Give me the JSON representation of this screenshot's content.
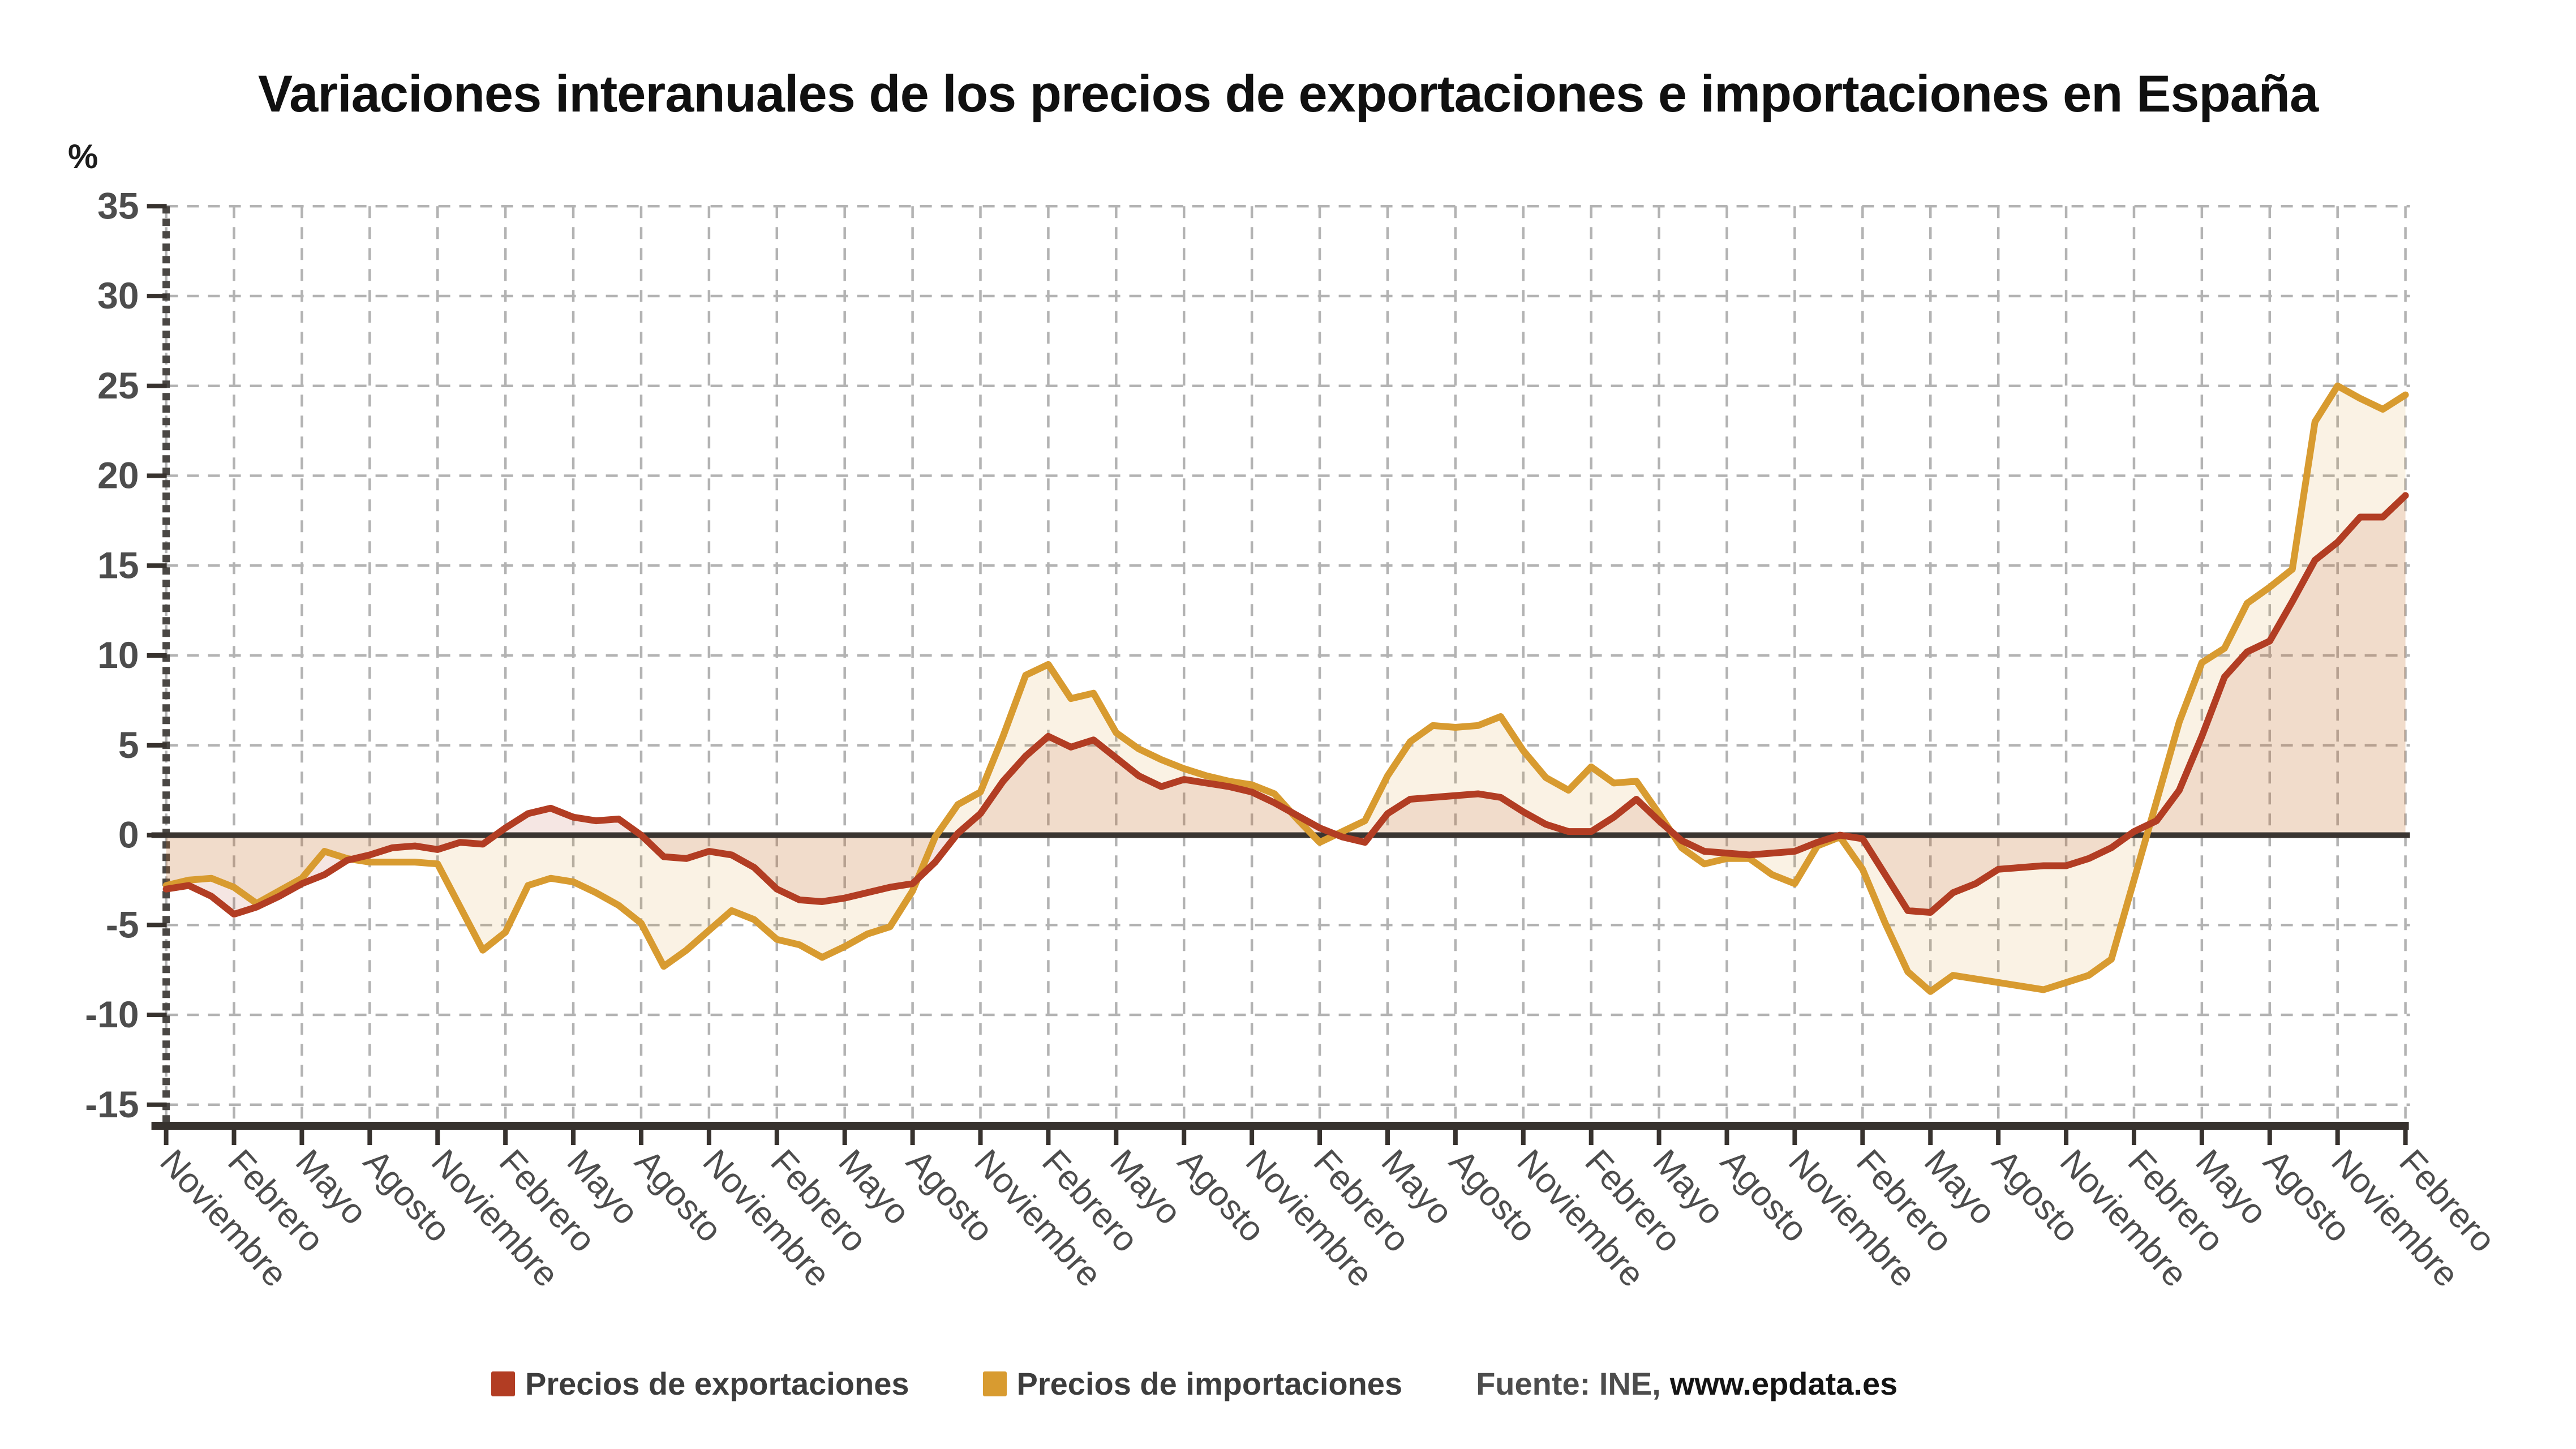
{
  "title": "Variaciones interanuales de los precios de exportaciones e importaciones en España",
  "y_axis_unit_label": "%",
  "legend": {
    "items": [
      {
        "label": "Precios de exportaciones",
        "color": "#b23d23"
      },
      {
        "label": "Precios de importaciones",
        "color": "#d89b30"
      }
    ]
  },
  "source": {
    "prefix": "Fuente: INE,",
    "site": "www.epdata.es"
  },
  "chart_data": {
    "type": "line",
    "title": "Variaciones interanuales de los precios de exportaciones e importaciones en España",
    "ylabel": "%",
    "xlabel": "",
    "ylim": [
      -15,
      35
    ],
    "y_tick_step": 5,
    "grid": true,
    "legend_position": "bottom",
    "n_points": 100,
    "months_per_tick": 3,
    "x_tick_labels": [
      "Noviembre",
      "Febrero",
      "Mayo",
      "Agosto",
      "Noviembre",
      "Febrero",
      "Mayo",
      "Agosto",
      "Noviembre",
      "Febrero",
      "Mayo",
      "Agosto",
      "Noviembre",
      "Febrero",
      "Mayo",
      "Agosto",
      "Noviembre",
      "Febrero",
      "Mayo",
      "Agosto",
      "Noviembre",
      "Febrero",
      "Mayo",
      "Agosto",
      "Noviembre",
      "Febrero",
      "Mayo",
      "Agosto",
      "Noviembre",
      "Febrero",
      "Mayo",
      "Agosto",
      "Noviembre",
      "Febrero"
    ],
    "colors": {
      "export_line": "#b23d23",
      "import_line": "#d89b30",
      "export_fill": "rgba(178,61,35,0.13)",
      "import_fill": "rgba(216,155,48,0.13)",
      "zero_line": "#3a3531",
      "axis": "#37322e",
      "gridline": "#b3b3b3",
      "tick_text": "#4d4d4d"
    },
    "series": [
      {
        "name": "Precios de exportaciones",
        "color": "#b23d23",
        "fill": "rgba(178,61,35,0.13)",
        "values": [
          -3.0,
          -2.8,
          -3.4,
          -4.4,
          -4.0,
          -3.4,
          -2.7,
          -2.2,
          -1.4,
          -1.1,
          -0.7,
          -0.6,
          -0.8,
          -0.4,
          -0.5,
          0.4,
          1.2,
          1.5,
          1.0,
          0.8,
          0.9,
          0.0,
          -1.2,
          -1.3,
          -0.9,
          -1.1,
          -1.8,
          -3.0,
          -3.6,
          -3.7,
          -3.5,
          -3.2,
          -2.9,
          -2.7,
          -1.5,
          0.1,
          1.2,
          3.0,
          4.4,
          5.5,
          4.9,
          5.3,
          4.3,
          3.3,
          2.7,
          3.1,
          2.9,
          2.7,
          2.4,
          1.8,
          1.1,
          0.4,
          -0.1,
          -0.4,
          1.2,
          2.0,
          2.1,
          2.2,
          2.3,
          2.1,
          1.3,
          0.6,
          0.2,
          0.2,
          1.0,
          2.0,
          0.8,
          -0.3,
          -0.9,
          -1.0,
          -1.1,
          -1.0,
          -0.9,
          -0.4,
          0.0,
          -0.2,
          -2.2,
          -4.2,
          -4.3,
          -3.2,
          -2.7,
          -1.9,
          -1.8,
          -1.7,
          -1.7,
          -1.3,
          -0.7,
          0.2,
          0.8,
          2.5,
          5.5,
          8.8,
          10.2,
          10.8,
          13.0,
          15.3,
          16.3,
          17.7,
          17.7,
          18.9
        ]
      },
      {
        "name": "Precios de importaciones",
        "color": "#d89b30",
        "fill": "rgba(216,155,48,0.13)",
        "values": [
          -2.8,
          -2.5,
          -2.4,
          -2.9,
          -3.8,
          -3.1,
          -2.4,
          -0.9,
          -1.3,
          -1.5,
          -1.5,
          -1.5,
          -1.6,
          -4.0,
          -6.4,
          -5.4,
          -2.8,
          -2.4,
          -2.6,
          -3.2,
          -3.9,
          -4.9,
          -7.3,
          -6.4,
          -5.3,
          -4.2,
          -4.7,
          -5.8,
          -6.1,
          -6.8,
          -6.2,
          -5.5,
          -5.1,
          -3.1,
          -0.1,
          1.7,
          2.4,
          5.5,
          8.9,
          9.5,
          7.6,
          7.9,
          5.7,
          4.8,
          4.2,
          3.7,
          3.3,
          3.0,
          2.8,
          2.3,
          0.9,
          -0.4,
          0.2,
          0.8,
          3.3,
          5.2,
          6.1,
          6.0,
          6.1,
          6.6,
          4.7,
          3.2,
          2.5,
          3.8,
          2.9,
          3.0,
          1.2,
          -0.7,
          -1.6,
          -1.3,
          -1.3,
          -2.2,
          -2.7,
          -0.6,
          -0.1,
          -1.9,
          -4.9,
          -7.6,
          -8.7,
          -7.8,
          -8.0,
          -8.2,
          -8.4,
          -8.6,
          -8.2,
          -7.8,
          -6.9,
          -2.5,
          1.9,
          6.3,
          9.6,
          10.4,
          12.9,
          13.8,
          14.8,
          23.0,
          25.0,
          24.3,
          23.7,
          24.5
        ]
      }
    ]
  }
}
